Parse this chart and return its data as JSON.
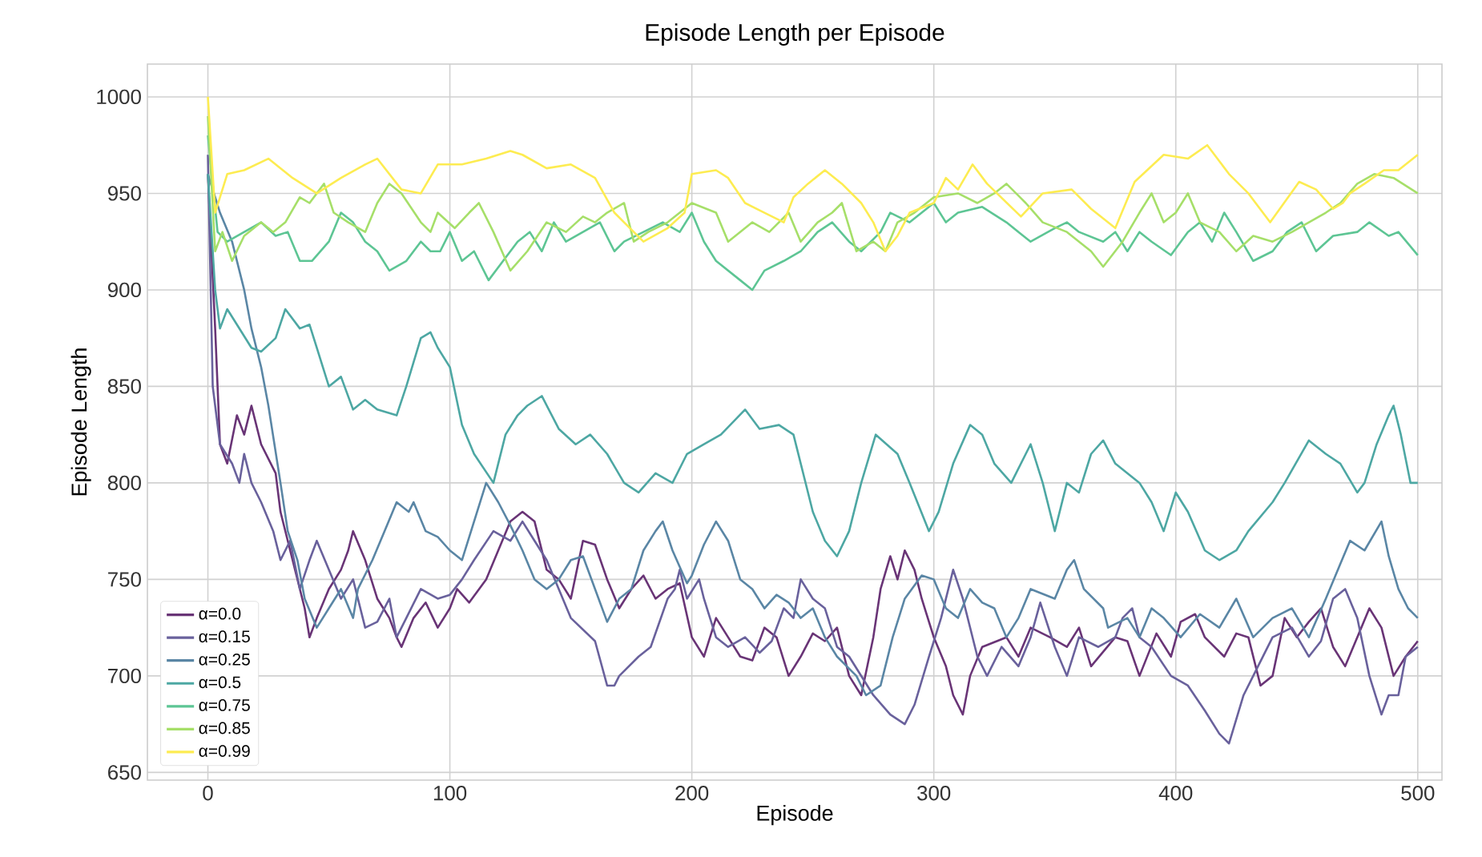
{
  "chart_data": {
    "type": "line",
    "title": "Episode Length per Episode",
    "xlabel": "Episode",
    "ylabel": "Episode Length",
    "xlim": [
      -25,
      510
    ],
    "ylim": [
      646,
      1017
    ],
    "xticks": [
      0,
      100,
      200,
      300,
      400,
      500
    ],
    "yticks": [
      650,
      700,
      750,
      800,
      850,
      900,
      950,
      1000
    ],
    "grid": true,
    "legend": "bottom left",
    "series": [
      {
        "name": "α=0.0",
        "color": "#693476",
        "x": [
          0,
          3,
          5,
          8,
          12,
          15,
          18,
          22,
          28,
          30,
          35,
          40,
          42,
          45,
          50,
          55,
          58,
          60,
          65,
          70,
          75,
          78,
          80,
          85,
          90,
          95,
          100,
          103,
          108,
          115,
          120,
          125,
          130,
          135,
          140,
          145,
          150,
          155,
          160,
          165,
          170,
          175,
          180,
          185,
          190,
          195,
          200,
          205,
          210,
          215,
          220,
          225,
          230,
          235,
          240,
          245,
          250,
          255,
          260,
          265,
          270,
          275,
          278,
          282,
          285,
          288,
          292,
          295,
          300,
          305,
          308,
          312,
          315,
          320,
          330,
          335,
          340,
          348,
          355,
          360,
          365,
          375,
          380,
          385,
          392,
          398,
          402,
          408,
          412,
          420,
          425,
          430,
          435,
          440,
          445,
          450,
          455,
          460,
          465,
          470,
          475,
          480,
          485,
          490,
          495,
          500
        ],
        "values": [
          960,
          880,
          820,
          810,
          835,
          825,
          840,
          820,
          805,
          785,
          760,
          735,
          720,
          730,
          745,
          755,
          765,
          775,
          760,
          740,
          730,
          720,
          715,
          730,
          738,
          725,
          735,
          745,
          738,
          750,
          765,
          780,
          785,
          780,
          755,
          750,
          740,
          770,
          768,
          750,
          735,
          745,
          752,
          740,
          745,
          748,
          720,
          710,
          730,
          720,
          710,
          708,
          725,
          720,
          700,
          710,
          722,
          718,
          725,
          700,
          690,
          720,
          745,
          762,
          750,
          765,
          755,
          740,
          720,
          705,
          690,
          680,
          700,
          715,
          720,
          710,
          725,
          720,
          715,
          725,
          705,
          720,
          718,
          700,
          722,
          710,
          728,
          732,
          720,
          710,
          722,
          720,
          695,
          700,
          730,
          720,
          728,
          735,
          715,
          705,
          720,
          735,
          725,
          700,
          710,
          718
        ]
      },
      {
        "name": "α=0.15",
        "color": "#69619c",
        "x": [
          0,
          2,
          5,
          10,
          13,
          15,
          18,
          22,
          27,
          30,
          34,
          38,
          42,
          45,
          50,
          55,
          60,
          65,
          70,
          75,
          78,
          82,
          88,
          95,
          100,
          105,
          110,
          118,
          125,
          130,
          135,
          140,
          150,
          160,
          165,
          168,
          170,
          178,
          183,
          190,
          193,
          195,
          198,
          203,
          205,
          210,
          215,
          222,
          228,
          233,
          238,
          242,
          245,
          250,
          255,
          260,
          265,
          270,
          275,
          282,
          288,
          292,
          298,
          303,
          308,
          312,
          318,
          322,
          328,
          335,
          340,
          344,
          350,
          355,
          360,
          368,
          375,
          378,
          382,
          385,
          390,
          398,
          405,
          412,
          418,
          422,
          428,
          432,
          440,
          448,
          455,
          460,
          465,
          470,
          475,
          480,
          485,
          488,
          492,
          495,
          500
        ],
        "values": [
          970,
          850,
          820,
          810,
          800,
          815,
          800,
          790,
          775,
          760,
          770,
          745,
          760,
          770,
          755,
          740,
          750,
          725,
          728,
          740,
          720,
          730,
          745,
          740,
          742,
          750,
          760,
          775,
          770,
          780,
          770,
          760,
          730,
          718,
          695,
          695,
          700,
          710,
          715,
          740,
          745,
          755,
          740,
          750,
          740,
          720,
          715,
          720,
          712,
          718,
          735,
          730,
          750,
          740,
          735,
          715,
          710,
          700,
          690,
          680,
          675,
          685,
          710,
          730,
          755,
          740,
          710,
          700,
          715,
          705,
          720,
          738,
          715,
          700,
          720,
          715,
          720,
          730,
          735,
          720,
          715,
          700,
          695,
          682,
          670,
          665,
          690,
          700,
          720,
          725,
          710,
          718,
          740,
          745,
          730,
          700,
          680,
          690,
          690,
          710,
          715
        ]
      },
      {
        "name": "α=0.25",
        "color": "#5a86a5",
        "x": [
          0,
          5,
          10,
          15,
          18,
          22,
          25,
          30,
          33,
          37,
          40,
          45,
          50,
          55,
          60,
          62,
          68,
          73,
          78,
          83,
          85,
          90,
          95,
          100,
          105,
          110,
          115,
          120,
          125,
          130,
          135,
          140,
          145,
          150,
          155,
          160,
          165,
          170,
          175,
          180,
          185,
          188,
          192,
          198,
          200,
          205,
          210,
          215,
          220,
          225,
          230,
          235,
          240,
          245,
          250,
          255,
          260,
          268,
          272,
          278,
          283,
          288,
          295,
          300,
          305,
          310,
          315,
          320,
          325,
          330,
          335,
          340,
          350,
          355,
          358,
          362,
          370,
          372,
          380,
          385,
          390,
          395,
          402,
          410,
          418,
          425,
          432,
          440,
          448,
          455,
          462,
          468,
          472,
          478,
          485,
          488,
          492,
          496,
          500
        ],
        "values": [
          960,
          940,
          925,
          900,
          880,
          860,
          840,
          800,
          775,
          760,
          740,
          725,
          735,
          745,
          730,
          745,
          760,
          775,
          790,
          785,
          790,
          775,
          772,
          765,
          760,
          780,
          800,
          790,
          778,
          765,
          750,
          745,
          750,
          760,
          762,
          745,
          728,
          740,
          745,
          765,
          775,
          780,
          765,
          748,
          752,
          768,
          780,
          770,
          750,
          745,
          735,
          742,
          738,
          730,
          735,
          720,
          710,
          700,
          690,
          695,
          720,
          740,
          752,
          750,
          735,
          730,
          745,
          738,
          735,
          720,
          730,
          745,
          740,
          755,
          760,
          745,
          735,
          725,
          730,
          720,
          735,
          730,
          720,
          732,
          725,
          740,
          720,
          730,
          735,
          720,
          740,
          758,
          770,
          765,
          780,
          762,
          745,
          735,
          730
        ]
      },
      {
        "name": "α=0.5",
        "color": "#4da7a3",
        "x": [
          0,
          3,
          5,
          8,
          12,
          18,
          22,
          28,
          32,
          38,
          42,
          45,
          50,
          55,
          60,
          65,
          70,
          78,
          82,
          88,
          92,
          95,
          100,
          105,
          110,
          118,
          123,
          128,
          132,
          138,
          145,
          152,
          158,
          165,
          172,
          178,
          185,
          192,
          198,
          205,
          212,
          222,
          228,
          236,
          242,
          250,
          255,
          260,
          265,
          270,
          276,
          285,
          290,
          298,
          302,
          308,
          315,
          320,
          325,
          332,
          338,
          340,
          345,
          350,
          355,
          360,
          365,
          370,
          375,
          385,
          390,
          395,
          400,
          405,
          412,
          418,
          425,
          430,
          440,
          445,
          455,
          462,
          468,
          475,
          478,
          483,
          488,
          490,
          493,
          497,
          500
        ],
        "values": [
          960,
          900,
          880,
          890,
          882,
          870,
          868,
          875,
          890,
          880,
          882,
          870,
          850,
          855,
          838,
          843,
          838,
          835,
          850,
          875,
          878,
          870,
          860,
          830,
          815,
          800,
          825,
          835,
          840,
          845,
          828,
          820,
          825,
          815,
          800,
          795,
          805,
          800,
          815,
          820,
          825,
          838,
          828,
          830,
          825,
          785,
          770,
          762,
          775,
          800,
          825,
          815,
          800,
          775,
          785,
          810,
          830,
          825,
          810,
          800,
          815,
          820,
          800,
          775,
          800,
          795,
          815,
          822,
          810,
          800,
          790,
          775,
          795,
          785,
          765,
          760,
          765,
          775,
          790,
          800,
          822,
          815,
          810,
          795,
          800,
          820,
          835,
          840,
          825,
          800,
          800
        ]
      },
      {
        "name": "α=0.75",
        "color": "#5dc594",
        "x": [
          0,
          4,
          8,
          15,
          22,
          28,
          33,
          38,
          43,
          50,
          55,
          60,
          65,
          70,
          75,
          82,
          88,
          92,
          96,
          100,
          105,
          110,
          116,
          122,
          128,
          133,
          138,
          143,
          148,
          155,
          162,
          168,
          172,
          180,
          188,
          195,
          200,
          205,
          210,
          220,
          225,
          230,
          238,
          245,
          252,
          258,
          265,
          270,
          278,
          282,
          290,
          300,
          305,
          310,
          320,
          330,
          335,
          340,
          350,
          355,
          360,
          370,
          375,
          380,
          385,
          390,
          398,
          405,
          410,
          415,
          420,
          425,
          432,
          440,
          446,
          452,
          458,
          465,
          475,
          480,
          488,
          492,
          500
        ],
        "values": [
          980,
          930,
          925,
          930,
          935,
          928,
          930,
          915,
          915,
          925,
          940,
          935,
          925,
          920,
          910,
          915,
          925,
          920,
          920,
          930,
          915,
          920,
          905,
          915,
          925,
          930,
          920,
          935,
          925,
          930,
          935,
          920,
          925,
          930,
          935,
          930,
          940,
          925,
          915,
          905,
          900,
          910,
          915,
          920,
          930,
          935,
          925,
          920,
          930,
          940,
          935,
          945,
          935,
          940,
          943,
          935,
          930,
          925,
          932,
          935,
          930,
          925,
          930,
          920,
          930,
          925,
          918,
          930,
          935,
          925,
          940,
          930,
          915,
          920,
          930,
          935,
          920,
          928,
          930,
          935,
          928,
          930,
          918
        ]
      },
      {
        "name": "α=0.85",
        "color": "#a6df69",
        "x": [
          0,
          3,
          6,
          10,
          15,
          22,
          27,
          32,
          38,
          42,
          48,
          52,
          58,
          65,
          70,
          75,
          80,
          88,
          92,
          95,
          102,
          108,
          112,
          118,
          125,
          132,
          140,
          148,
          155,
          160,
          165,
          172,
          176,
          182,
          190,
          200,
          210,
          215,
          225,
          232,
          240,
          245,
          252,
          258,
          262,
          268,
          275,
          280,
          285,
          292,
          300,
          310,
          318,
          325,
          330,
          338,
          345,
          355,
          365,
          370,
          378,
          385,
          390,
          395,
          400,
          405,
          410,
          418,
          425,
          432,
          440,
          448,
          455,
          462,
          468,
          475,
          482,
          490,
          500
        ],
        "values": [
          990,
          920,
          930,
          915,
          928,
          935,
          930,
          935,
          948,
          945,
          955,
          940,
          935,
          930,
          945,
          955,
          950,
          935,
          930,
          940,
          932,
          940,
          945,
          930,
          910,
          920,
          935,
          930,
          938,
          935,
          940,
          945,
          925,
          930,
          935,
          945,
          940,
          925,
          935,
          930,
          940,
          925,
          935,
          940,
          945,
          920,
          925,
          920,
          935,
          940,
          948,
          950,
          945,
          950,
          955,
          945,
          935,
          930,
          920,
          912,
          925,
          940,
          950,
          935,
          940,
          950,
          935,
          930,
          920,
          928,
          925,
          930,
          935,
          940,
          945,
          955,
          960,
          958,
          950
        ]
      },
      {
        "name": "α=0.99",
        "color": "#fdec51",
        "x": [
          0,
          3,
          8,
          15,
          25,
          35,
          45,
          55,
          65,
          70,
          80,
          88,
          95,
          105,
          115,
          125,
          130,
          140,
          150,
          160,
          168,
          172,
          180,
          190,
          197,
          200,
          210,
          215,
          222,
          230,
          238,
          242,
          248,
          255,
          262,
          270,
          275,
          280,
          285,
          290,
          300,
          305,
          310,
          316,
          322,
          336,
          345,
          357,
          365,
          375,
          383,
          395,
          405,
          413,
          422,
          430,
          439,
          451,
          458,
          465,
          469,
          472,
          478,
          486,
          492,
          500
        ],
        "values": [
          1000,
          940,
          960,
          962,
          968,
          958,
          950,
          958,
          965,
          968,
          952,
          950,
          965,
          965,
          968,
          972,
          970,
          963,
          965,
          958,
          940,
          935,
          925,
          932,
          940,
          960,
          962,
          958,
          945,
          940,
          935,
          948,
          955,
          962,
          955,
          945,
          935,
          920,
          928,
          940,
          945,
          958,
          952,
          965,
          955,
          938,
          950,
          952,
          942,
          932,
          956,
          970,
          968,
          975,
          960,
          950,
          935,
          956,
          952,
          942,
          945,
          950,
          955,
          962,
          962,
          970
        ]
      }
    ]
  }
}
